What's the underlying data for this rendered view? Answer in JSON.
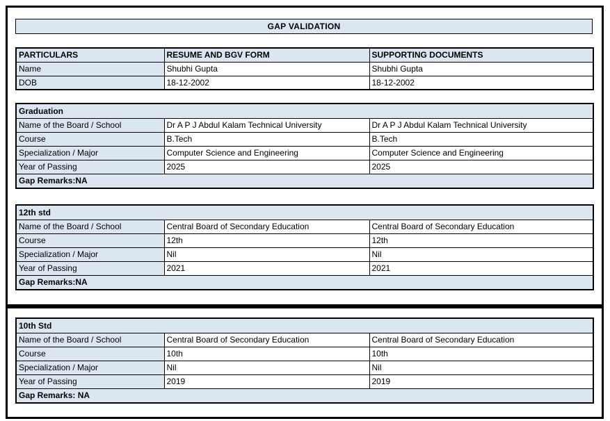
{
  "title": "GAP VALIDATION",
  "colors": {
    "header_fill": "#dce6f1",
    "border": "#000000"
  },
  "columns": [
    "PARTICULARS",
    "RESUME AND BGV FORM",
    "SUPPORTING DOCUMENTS"
  ],
  "particulars": {
    "rows": [
      {
        "label": "Name",
        "resume": "Shubhi Gupta",
        "supporting": "Shubhi Gupta"
      },
      {
        "label": "DOB",
        "resume": "18-12-2002",
        "supporting": "18-12-2002"
      }
    ]
  },
  "sections": [
    {
      "heading": "Graduation",
      "rows": [
        {
          "label": "Name of the Board / School",
          "resume": "Dr A P J Abdul Kalam Technical University",
          "supporting": "Dr A P J Abdul Kalam Technical University"
        },
        {
          "label": "Course",
          "resume": "B.Tech",
          "supporting": "B.Tech"
        },
        {
          "label": "Specialization / Major",
          "resume": "Computer Science and Engineering",
          "supporting": "Computer Science and Engineering"
        },
        {
          "label": "Year of Passing",
          "resume": "2025",
          "supporting": "2025"
        }
      ],
      "gap_remarks": "Gap Remarks:NA"
    },
    {
      "heading": "12th std",
      "rows": [
        {
          "label": "Name of the Board / School",
          "resume": "Central Board of Secondary Education",
          "supporting": "Central Board of Secondary Education"
        },
        {
          "label": "Course",
          "resume": "12th",
          "supporting": "12th"
        },
        {
          "label": "Specialization / Major",
          "resume": "Nil",
          "supporting": "Nil"
        },
        {
          "label": "Year of Passing",
          "resume": "2021",
          "supporting": "2021"
        }
      ],
      "gap_remarks": "Gap Remarks:NA"
    },
    {
      "heading": "10th Std",
      "rows": [
        {
          "label": "Name of the Board / School",
          "resume": "Central Board of Secondary Education",
          "supporting": "Central Board of Secondary Education"
        },
        {
          "label": "Course",
          "resume": "10th",
          "supporting": "10th"
        },
        {
          "label": "Specialization / Major",
          "resume": "Nil",
          "supporting": "Nil"
        },
        {
          "label": "Year of Passing",
          "resume": "2019",
          "supporting": "2019"
        }
      ],
      "gap_remarks": "Gap Remarks: NA"
    }
  ]
}
